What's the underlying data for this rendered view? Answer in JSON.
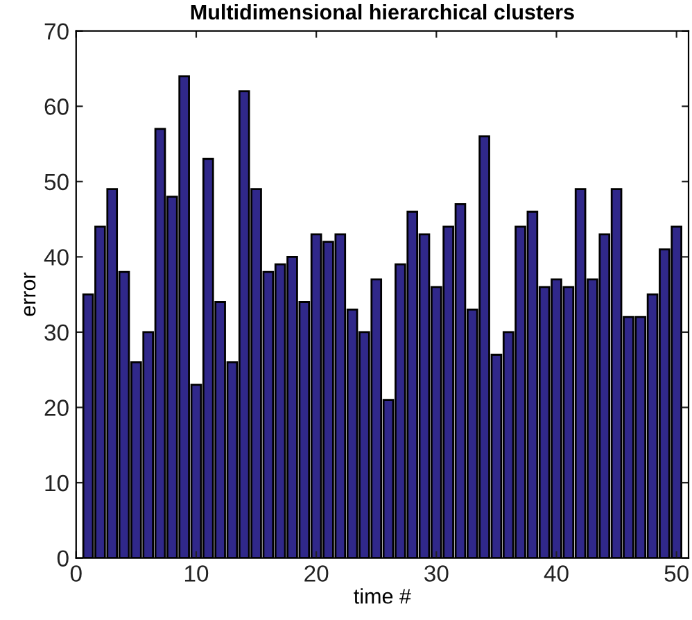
{
  "chart_data": {
    "type": "bar",
    "title": "Multidimensional hierarchical clusters",
    "xlabel": "time #",
    "ylabel": "error",
    "x": [
      1,
      2,
      3,
      4,
      5,
      6,
      7,
      8,
      9,
      10,
      11,
      12,
      13,
      14,
      15,
      16,
      17,
      18,
      19,
      20,
      21,
      22,
      23,
      24,
      25,
      26,
      27,
      28,
      29,
      30,
      31,
      32,
      33,
      34,
      35,
      36,
      37,
      38,
      39,
      40,
      41,
      42,
      43,
      44,
      45,
      46,
      47,
      48,
      49,
      50
    ],
    "values": [
      35,
      44,
      49,
      38,
      26,
      30,
      57,
      48,
      64,
      23,
      53,
      34,
      26,
      62,
      49,
      38,
      39,
      40,
      34,
      43,
      42,
      43,
      33,
      30,
      37,
      21,
      39,
      46,
      43,
      36,
      44,
      47,
      33,
      56,
      27,
      30,
      44,
      46,
      36,
      37,
      36,
      49,
      37,
      43,
      49,
      32,
      32,
      35,
      41,
      44
    ],
    "color": "#30288a",
    "xlim": [
      0,
      51
    ],
    "xticks": [
      0,
      10,
      20,
      30,
      40,
      50
    ],
    "ylim": [
      0,
      70
    ],
    "yticks": [
      0,
      10,
      20,
      30,
      40,
      50,
      60,
      70
    ],
    "grid": false
  }
}
